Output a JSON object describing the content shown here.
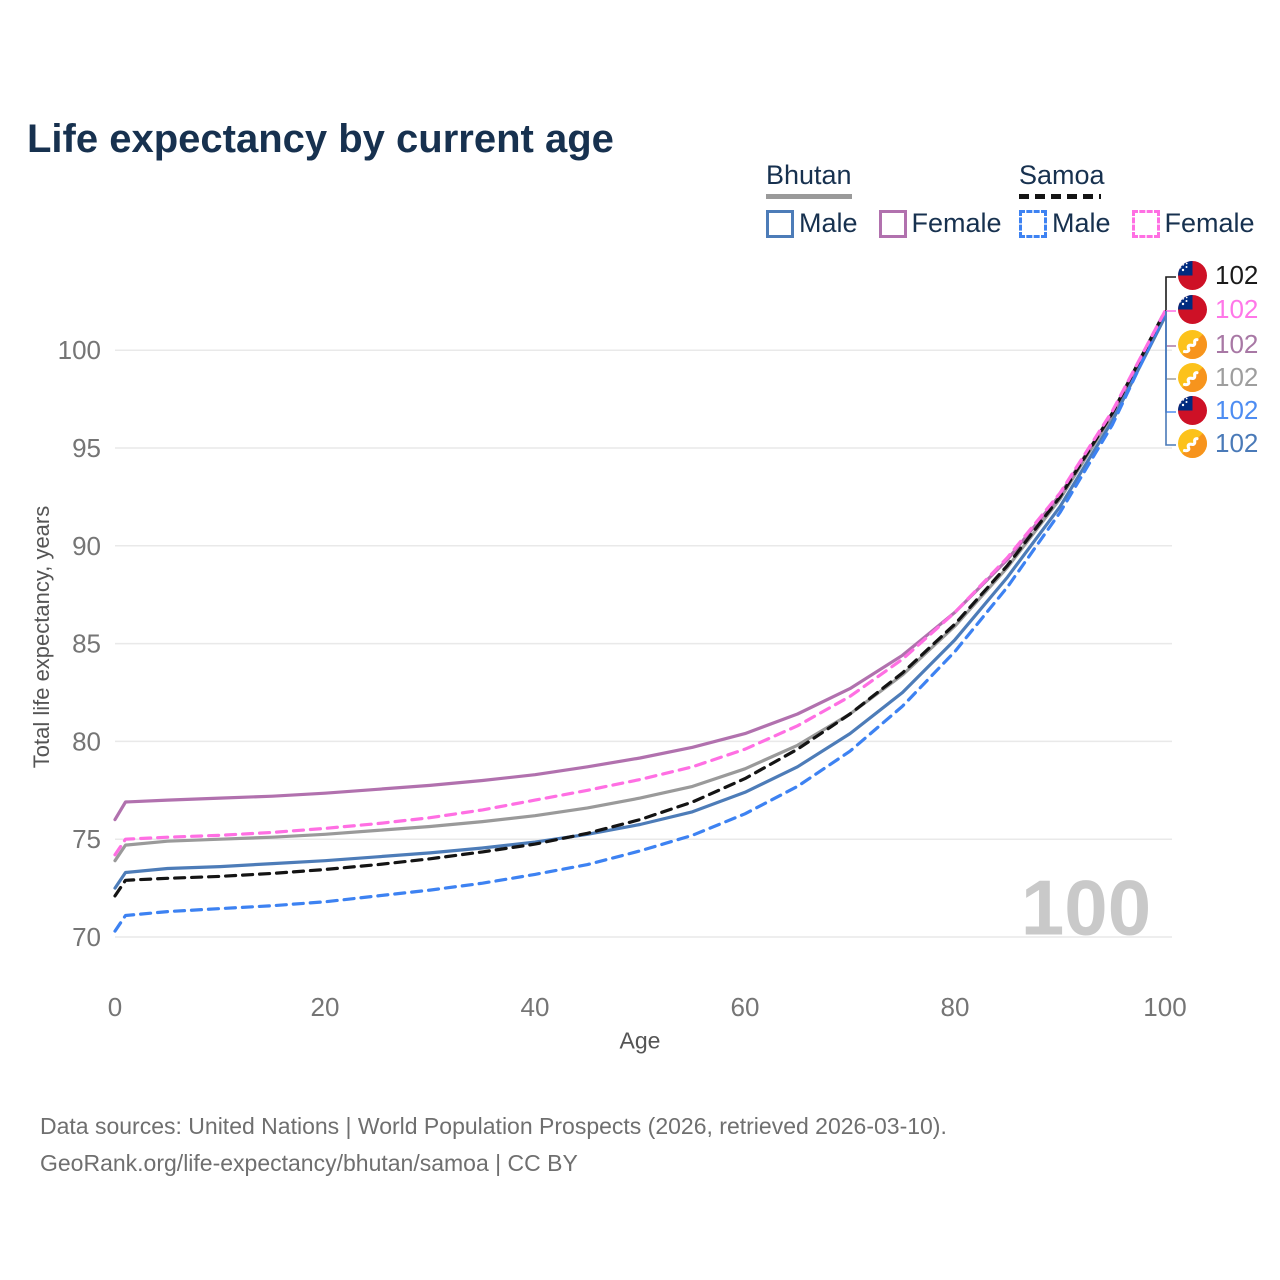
{
  "header": {
    "title": "Life expectancy by current age"
  },
  "legend": {
    "bhutan": {
      "label": "Bhutan",
      "male": "Male",
      "female": "Female"
    },
    "samoa": {
      "label": "Samoa",
      "male": "Male",
      "female": "Female"
    }
  },
  "chart_data": {
    "type": "line",
    "title": "Life expectancy by current age",
    "xlabel": "Age",
    "ylabel": "Total life expectancy, years",
    "x_ticks": [
      0,
      20,
      40,
      60,
      80,
      100
    ],
    "y_ticks": [
      70,
      75,
      80,
      85,
      90,
      95,
      100
    ],
    "xlim": [
      0,
      100
    ],
    "ylim": [
      68.5,
      103.5
    ],
    "grid": "horizontal",
    "legend_position": "top-right",
    "age_indicator": "100",
    "ages": [
      0,
      1,
      5,
      10,
      15,
      20,
      25,
      30,
      35,
      40,
      45,
      50,
      55,
      60,
      65,
      70,
      75,
      80,
      85,
      90,
      95,
      100
    ],
    "series": [
      {
        "id": "bhutan_average",
        "name": "Bhutan",
        "color": "#9a9a9a",
        "dash": "solid",
        "values": [
          73.9,
          74.7,
          74.9,
          75.0,
          75.1,
          75.25,
          75.45,
          75.65,
          75.9,
          76.2,
          76.6,
          77.1,
          77.7,
          78.6,
          79.8,
          81.4,
          83.4,
          85.9,
          88.9,
          92.4,
          96.7,
          101.8
        ]
      },
      {
        "id": "bhutan_female",
        "name": "Bhutan Female",
        "color": "#b171ae",
        "dash": "solid",
        "values": [
          76.0,
          76.9,
          77.0,
          77.1,
          77.2,
          77.35,
          77.55,
          77.75,
          78.0,
          78.3,
          78.7,
          79.15,
          79.7,
          80.4,
          81.4,
          82.7,
          84.4,
          86.6,
          89.3,
          92.6,
          96.8,
          101.9
        ]
      },
      {
        "id": "bhutan_male",
        "name": "Bhutan Male",
        "color": "#4d7cb8",
        "dash": "solid",
        "values": [
          72.5,
          73.3,
          73.5,
          73.6,
          73.75,
          73.9,
          74.1,
          74.3,
          74.55,
          74.85,
          75.25,
          75.75,
          76.4,
          77.4,
          78.7,
          80.4,
          82.5,
          85.2,
          88.4,
          92.0,
          96.4,
          101.7
        ]
      },
      {
        "id": "samoa_male",
        "name": "Samoa Male",
        "color": "#3d82f2",
        "dash": "dashed",
        "values": [
          70.3,
          71.1,
          71.3,
          71.45,
          71.6,
          71.8,
          72.1,
          72.4,
          72.75,
          73.2,
          73.7,
          74.4,
          75.2,
          76.3,
          77.7,
          79.5,
          81.8,
          84.6,
          87.9,
          91.7,
          96.2,
          101.9
        ]
      },
      {
        "id": "samoa_average",
        "name": "Samoa",
        "color": "#141414",
        "dash": "dashed",
        "values": [
          72.1,
          72.9,
          73.0,
          73.1,
          73.25,
          73.45,
          73.7,
          74.0,
          74.35,
          74.75,
          75.3,
          76.0,
          76.9,
          78.1,
          79.6,
          81.4,
          83.5,
          86.0,
          89.0,
          92.5,
          96.8,
          102.0
        ]
      },
      {
        "id": "samoa_female",
        "name": "Samoa Female",
        "color": "#ff6fe3",
        "dash": "dashed",
        "values": [
          74.2,
          75.0,
          75.1,
          75.2,
          75.35,
          75.55,
          75.8,
          76.1,
          76.5,
          77.0,
          77.5,
          78.05,
          78.7,
          79.6,
          80.8,
          82.3,
          84.2,
          86.6,
          89.4,
          92.7,
          96.9,
          102.0
        ]
      }
    ]
  },
  "end_labels": [
    {
      "flag": "samoa",
      "value": "102",
      "color": "#1a1a1a"
    },
    {
      "flag": "samoa",
      "value": "102",
      "color": "#ff77e8"
    },
    {
      "flag": "bhutan",
      "value": "102",
      "color": "#a878a5"
    },
    {
      "flag": "bhutan",
      "value": "102",
      "color": "#9e9e9e"
    },
    {
      "flag": "samoa",
      "value": "102",
      "color": "#4e8df2"
    },
    {
      "flag": "bhutan",
      "value": "102",
      "color": "#4a7ab8"
    }
  ],
  "footer": {
    "line1": "Data sources: United Nations | World Population Prospects (2026, retrieved 2026-03-10).",
    "line2": "GeoRank.org/life-expectancy/bhutan/samoa | CC BY"
  }
}
